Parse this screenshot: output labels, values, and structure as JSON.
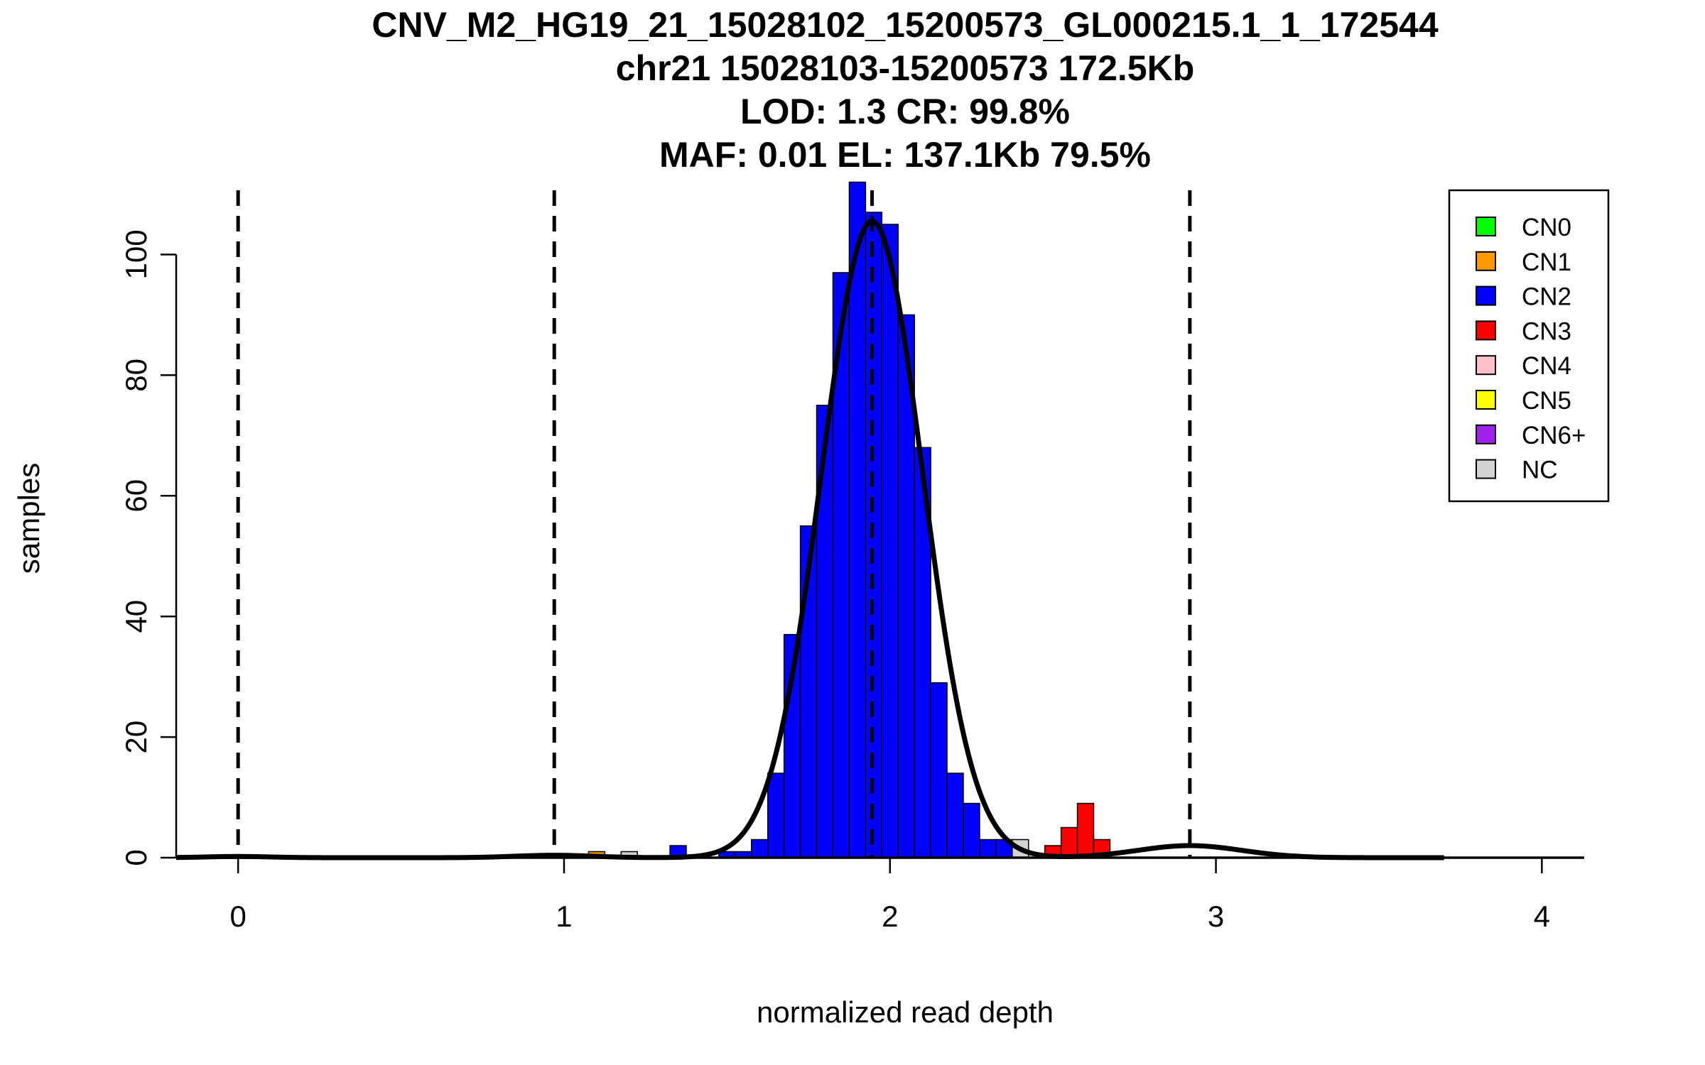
{
  "chart_data": {
    "type": "histogram",
    "title_lines": [
      "CNV_M2_HG19_21_15028102_15200573_GL000215.1_1_172544",
      "chr21 15028103-15200573 172.5Kb",
      "LOD: 1.3 CR: 99.8%",
      "MAF: 0.01 EL: 137.1Kb 79.5%"
    ],
    "xlabel": "normalized read depth",
    "ylabel": "samples",
    "xlim": [
      -0.19,
      4.13
    ],
    "ylim": [
      0,
      112.3
    ],
    "xticks": [
      0,
      1,
      2,
      3,
      4
    ],
    "yticks": [
      0,
      20,
      40,
      60,
      80,
      100
    ],
    "bin_width": 0.05,
    "bins": [
      {
        "x0": 1.075,
        "count": 1,
        "cn": "CN1"
      },
      {
        "x0": 1.175,
        "count": 1,
        "cn": "NC"
      },
      {
        "x0": 1.325,
        "count": 2,
        "cn": "CN2"
      },
      {
        "x0": 1.475,
        "count": 1,
        "cn": "CN2"
      },
      {
        "x0": 1.525,
        "count": 1,
        "cn": "CN2"
      },
      {
        "x0": 1.575,
        "count": 3,
        "cn": "CN2"
      },
      {
        "x0": 1.625,
        "count": 14,
        "cn": "CN2"
      },
      {
        "x0": 1.675,
        "count": 37,
        "cn": "CN2"
      },
      {
        "x0": 1.725,
        "count": 55,
        "cn": "CN2"
      },
      {
        "x0": 1.775,
        "count": 75,
        "cn": "CN2"
      },
      {
        "x0": 1.825,
        "count": 97,
        "cn": "CN2"
      },
      {
        "x0": 1.875,
        "count": 112,
        "cn": "CN2"
      },
      {
        "x0": 1.925,
        "count": 107,
        "cn": "CN2"
      },
      {
        "x0": 1.975,
        "count": 105,
        "cn": "CN2"
      },
      {
        "x0": 2.025,
        "count": 90,
        "cn": "CN2"
      },
      {
        "x0": 2.075,
        "count": 68,
        "cn": "CN2"
      },
      {
        "x0": 2.125,
        "count": 29,
        "cn": "CN2"
      },
      {
        "x0": 2.175,
        "count": 14,
        "cn": "CN2"
      },
      {
        "x0": 2.225,
        "count": 9,
        "cn": "CN2"
      },
      {
        "x0": 2.275,
        "count": 3,
        "cn": "CN2"
      },
      {
        "x0": 2.325,
        "count": 3,
        "cn": "CN2"
      },
      {
        "x0": 2.375,
        "count": 3,
        "cn": "NC"
      },
      {
        "x0": 2.475,
        "count": 2,
        "cn": "CN3"
      },
      {
        "x0": 2.525,
        "count": 5,
        "cn": "CN3"
      },
      {
        "x0": 2.575,
        "count": 9,
        "cn": "CN3"
      },
      {
        "x0": 2.625,
        "count": 3,
        "cn": "CN3"
      }
    ],
    "density_components": [
      {
        "mean": 0.0,
        "sd": 0.1,
        "height": 0.2
      },
      {
        "mean": 0.97,
        "sd": 0.12,
        "height": 0.4
      },
      {
        "mean": 1.945,
        "sd": 0.155,
        "height": 105.5
      },
      {
        "mean": 2.92,
        "sd": 0.16,
        "height": 2.0
      }
    ],
    "density_range": [
      -0.19,
      3.7
    ],
    "dashed_lines_x": [
      0.0,
      0.97,
      1.945,
      2.92
    ],
    "legend": {
      "position": "top-right",
      "entries": [
        {
          "label": "CN0",
          "color": "#00ff00"
        },
        {
          "label": "CN1",
          "color": "#ff9900"
        },
        {
          "label": "CN2",
          "color": "#0000ff"
        },
        {
          "label": "CN3",
          "color": "#ff0000"
        },
        {
          "label": "CN4",
          "color": "#ffc0cb"
        },
        {
          "label": "CN5",
          "color": "#ffff00"
        },
        {
          "label": "CN6+",
          "color": "#a020f0"
        },
        {
          "label": "NC",
          "color": "#d3d3d3"
        }
      ]
    }
  }
}
